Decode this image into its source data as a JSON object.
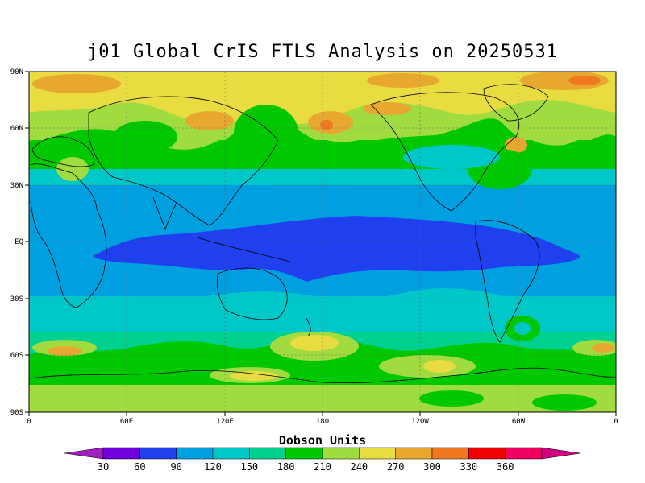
{
  "title": "j01 Global CrIS FTLS Analysis on 20250531",
  "colorbar": {
    "title": "Dobson Units",
    "labels": [
      "30",
      "60",
      "90",
      "120",
      "150",
      "180",
      "210",
      "240",
      "270",
      "300",
      "330",
      "360"
    ],
    "colors": [
      "#a020c0",
      "#7000e0",
      "#2040f0",
      "#00a0e0",
      "#00c8c8",
      "#00d090",
      "#00c800",
      "#a0dc40",
      "#e8dc40",
      "#e8a830",
      "#f07820",
      "#f00000",
      "#f00060",
      "#d00080"
    ]
  },
  "axes": {
    "lat_labels": [
      "90N",
      "60N",
      "30N",
      "EQ",
      "30S",
      "60S",
      "90S"
    ],
    "lon_labels": [
      "0",
      "60E",
      "120E",
      "180",
      "120W",
      "60W",
      "0"
    ]
  },
  "chart_data": {
    "type": "heatmap",
    "title": "j01 Global CrIS FTLS Analysis on 20250531",
    "units": "Dobson Units",
    "levels": [
      30,
      60,
      90,
      120,
      150,
      180,
      210,
      240,
      270,
      300,
      330,
      360
    ],
    "lon_range": [
      0,
      360
    ],
    "lat_range": [
      -90,
      90
    ],
    "bands": [
      {
        "lat": 85,
        "value": 270
      },
      {
        "lat": 65,
        "value": 240
      },
      {
        "lat": 45,
        "value": 180
      },
      {
        "lat": 25,
        "value": 120
      },
      {
        "lat": 5,
        "value": 75
      },
      {
        "lat": -15,
        "value": 110
      },
      {
        "lat": -35,
        "value": 150
      },
      {
        "lat": -55,
        "value": 210
      },
      {
        "lat": -75,
        "value": 240
      }
    ]
  }
}
